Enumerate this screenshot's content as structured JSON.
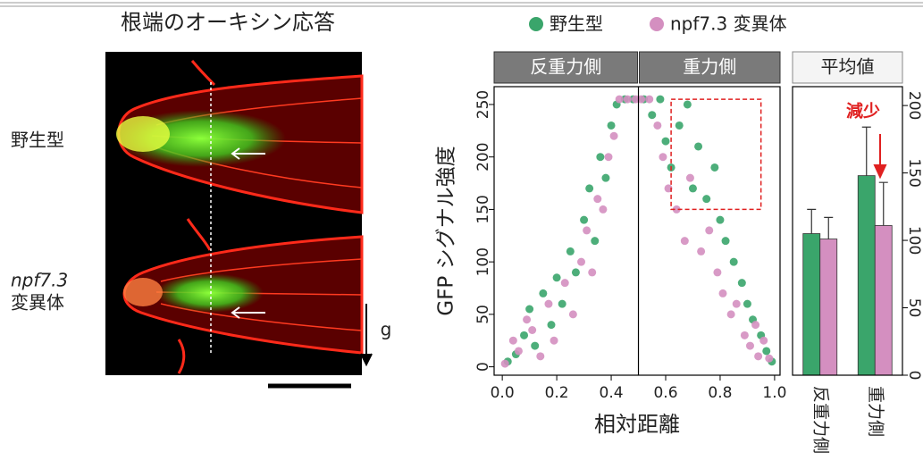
{
  "title": "根端のオーキシン応答",
  "image_panel": {
    "row_labels": [
      [
        "野生型"
      ],
      [
        "npf7.3",
        "変異体"
      ]
    ],
    "gravity_label": "g"
  },
  "chart_data": [
    {
      "type": "scatter",
      "legend": "top",
      "facets": [
        "反重力側",
        "重力側"
      ],
      "facet_split": 0.5,
      "xlabel": "相対距離",
      "ylabel": "GFP シグナル強度",
      "xlim": [
        -0.03,
        1.02
      ],
      "ylim": [
        -8,
        267
      ],
      "xticks": [
        {
          "value": 0,
          "label": "0.0"
        },
        {
          "value": 0.2,
          "label": "0.2"
        },
        {
          "value": 0.4,
          "label": "0.4"
        },
        {
          "value": 0.6,
          "label": "0.6"
        },
        {
          "value": 0.8,
          "label": "0.8"
        },
        {
          "value": 1,
          "label": "1.0"
        }
      ],
      "yticks": [
        0,
        50,
        100,
        150,
        200,
        250
      ],
      "series": [
        {
          "name": "野生型",
          "color": "#3aa56b",
          "x": [
            0.02,
            0.05,
            0.08,
            0.1,
            0.12,
            0.15,
            0.18,
            0.2,
            0.22,
            0.25,
            0.27,
            0.3,
            0.32,
            0.34,
            0.36,
            0.38,
            0.4,
            0.42,
            0.45,
            0.48,
            0.52,
            0.55,
            0.58,
            0.6,
            0.62,
            0.65,
            0.68,
            0.7,
            0.72,
            0.75,
            0.78,
            0.8,
            0.82,
            0.85,
            0.88,
            0.9,
            0.92,
            0.95,
            0.97,
            0.99
          ],
          "values": [
            5,
            12,
            30,
            55,
            20,
            70,
            40,
            85,
            60,
            110,
            90,
            140,
            170,
            120,
            200,
            180,
            230,
            250,
            255,
            255,
            255,
            240,
            255,
            215,
            190,
            230,
            250,
            170,
            210,
            160,
            190,
            140,
            120,
            100,
            80,
            60,
            45,
            30,
            15,
            5
          ]
        },
        {
          "name": "npf7.3 変異体",
          "color": "#d48fc0",
          "x": [
            0.01,
            0.04,
            0.06,
            0.09,
            0.11,
            0.14,
            0.17,
            0.19,
            0.23,
            0.26,
            0.29,
            0.31,
            0.33,
            0.35,
            0.37,
            0.39,
            0.41,
            0.43,
            0.46,
            0.49,
            0.51,
            0.54,
            0.57,
            0.59,
            0.61,
            0.64,
            0.67,
            0.69,
            0.73,
            0.76,
            0.79,
            0.81,
            0.84,
            0.86,
            0.89,
            0.91,
            0.93,
            0.94,
            0.96,
            0.98
          ],
          "values": [
            3,
            25,
            15,
            45,
            35,
            10,
            60,
            25,
            80,
            50,
            100,
            130,
            90,
            160,
            150,
            200,
            220,
            255,
            255,
            255,
            255,
            255,
            230,
            200,
            170,
            150,
            120,
            180,
            110,
            130,
            90,
            70,
            50,
            60,
            30,
            20,
            40,
            10,
            25,
            8
          ]
        }
      ],
      "highlight": {
        "x": [
          0.62,
          0.95
        ],
        "y": [
          150,
          255
        ],
        "color": "#e02020"
      }
    },
    {
      "type": "bar",
      "title": "平均値",
      "categories": [
        "反重力側",
        "重力側"
      ],
      "ylim": [
        0,
        214
      ],
      "yticks": [
        0,
        50,
        100,
        150,
        200
      ],
      "axis_side": "right",
      "series": [
        {
          "color": "#3aa56b",
          "values": [
            105,
            148
          ],
          "errors": [
            18,
            36
          ]
        },
        {
          "color": "#d48fc0",
          "values": [
            101,
            111
          ],
          "errors": [
            16,
            32
          ]
        }
      ],
      "annotation": {
        "text": "減少",
        "color": "#e02020"
      }
    }
  ]
}
